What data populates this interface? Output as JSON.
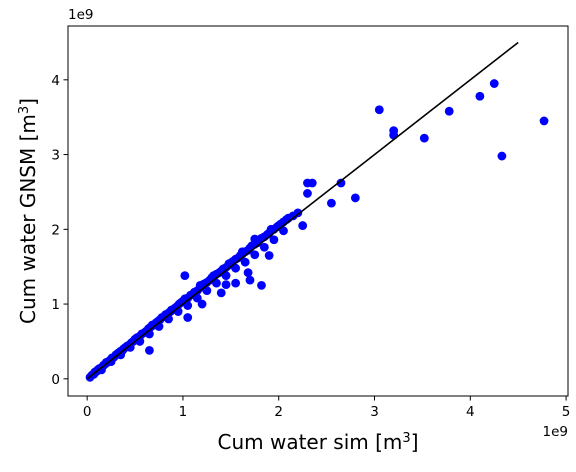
{
  "chart_data": {
    "type": "scatter",
    "title": "",
    "xlabel": "Cum water sim [m",
    "ylabel": "Cum water GNSM [m",
    "label_unit_exponent": "3",
    "label_close": "]",
    "x_offset_text": "1e9",
    "y_offset_text": "1e9",
    "xlim": [
      -0.2,
      5.02
    ],
    "ylim": [
      -0.23,
      4.72
    ],
    "xticks": [
      0,
      1,
      2,
      3,
      4,
      5
    ],
    "yticks": [
      0,
      1,
      2,
      3,
      4
    ],
    "xtick_labels": [
      "0",
      "1",
      "2",
      "3",
      "4",
      "5"
    ],
    "ytick_labels": [
      "0",
      "1",
      "2",
      "3",
      "4"
    ],
    "grid": false,
    "legend": "none",
    "series": [
      {
        "marker": "circle",
        "color": "#0000ff",
        "x": [
          0.03,
          0.05,
          0.07,
          0.08,
          0.1,
          0.11,
          0.13,
          0.15,
          0.17,
          0.18,
          0.2,
          0.22,
          0.24,
          0.26,
          0.28,
          0.3,
          0.31,
          0.33,
          0.35,
          0.37,
          0.4,
          0.42,
          0.44,
          0.46,
          0.48,
          0.5,
          0.52,
          0.55,
          0.57,
          0.6,
          0.62,
          0.64,
          0.66,
          0.68,
          0.7,
          0.72,
          0.74,
          0.76,
          0.78,
          0.8,
          0.82,
          0.85,
          0.87,
          0.9,
          0.92,
          0.94,
          0.96,
          0.98,
          1.0,
          1.02,
          1.05,
          1.08,
          1.1,
          1.12,
          1.15,
          1.18,
          1.2,
          1.22,
          1.25,
          1.28,
          1.3,
          1.32,
          1.35,
          1.38,
          1.4,
          1.42,
          1.45,
          1.48,
          1.5,
          1.52,
          1.55,
          1.58,
          1.6,
          1.62,
          1.65,
          1.68,
          1.7,
          1.72,
          1.75,
          1.78,
          1.8,
          1.82,
          1.85,
          1.88,
          1.9,
          1.92,
          1.95,
          1.98,
          2.0,
          2.02,
          2.05,
          2.08,
          2.1,
          2.15,
          2.2,
          0.15,
          0.25,
          0.35,
          0.45,
          0.55,
          0.65,
          0.75,
          0.85,
          0.95,
          1.05,
          1.15,
          1.25,
          1.35,
          1.45,
          1.55,
          1.65,
          1.75,
          1.85,
          1.95,
          0.2,
          0.38,
          0.52,
          0.68,
          0.88,
          1.02,
          1.18,
          1.32,
          1.48,
          1.62,
          1.78,
          1.92,
          0.65,
          1.05,
          1.2,
          1.4,
          1.55,
          1.7,
          1.82,
          1.02,
          1.45,
          1.68,
          1.75,
          1.9,
          2.05,
          2.25,
          2.3,
          2.35,
          2.55,
          2.65,
          2.8,
          2.3,
          3.05,
          3.2,
          3.2,
          3.52,
          3.78,
          4.1,
          4.25,
          4.33,
          4.77
        ],
        "y": [
          0.02,
          0.05,
          0.06,
          0.09,
          0.1,
          0.12,
          0.14,
          0.15,
          0.18,
          0.19,
          0.21,
          0.23,
          0.25,
          0.28,
          0.29,
          0.32,
          0.33,
          0.35,
          0.37,
          0.38,
          0.42,
          0.44,
          0.45,
          0.48,
          0.5,
          0.53,
          0.54,
          0.57,
          0.6,
          0.62,
          0.64,
          0.67,
          0.69,
          0.71,
          0.72,
          0.75,
          0.77,
          0.79,
          0.82,
          0.83,
          0.86,
          0.88,
          0.9,
          0.93,
          0.95,
          0.97,
          1.0,
          1.02,
          1.04,
          1.06,
          1.08,
          1.12,
          1.13,
          1.16,
          1.18,
          1.22,
          1.24,
          1.27,
          1.29,
          1.32,
          1.35,
          1.36,
          1.4,
          1.42,
          1.44,
          1.47,
          1.49,
          1.52,
          1.55,
          1.57,
          1.6,
          1.62,
          1.65,
          1.67,
          1.7,
          1.72,
          1.75,
          1.78,
          1.8,
          1.82,
          1.86,
          1.88,
          1.9,
          1.93,
          1.95,
          1.98,
          2.0,
          2.03,
          2.05,
          2.07,
          2.1,
          2.13,
          2.15,
          2.18,
          2.22,
          0.12,
          0.23,
          0.32,
          0.42,
          0.5,
          0.6,
          0.7,
          0.8,
          0.9,
          0.98,
          1.08,
          1.18,
          1.28,
          1.38,
          1.48,
          1.56,
          1.66,
          1.76,
          1.86,
          0.22,
          0.4,
          0.55,
          0.72,
          0.92,
          1.07,
          1.25,
          1.38,
          1.54,
          1.7,
          1.85,
          2.0,
          0.38,
          0.82,
          1.0,
          1.15,
          1.28,
          1.32,
          1.25,
          1.38,
          1.26,
          1.42,
          1.87,
          1.65,
          1.98,
          2.05,
          2.48,
          2.62,
          2.35,
          2.62,
          2.42,
          2.62,
          3.6,
          3.32,
          3.26,
          3.22,
          3.58,
          3.78,
          3.95,
          2.98,
          3.45
        ]
      },
      {
        "type": "line",
        "color": "#000000",
        "x": [
          0,
          4.5
        ],
        "y": [
          0,
          4.5
        ]
      }
    ]
  }
}
